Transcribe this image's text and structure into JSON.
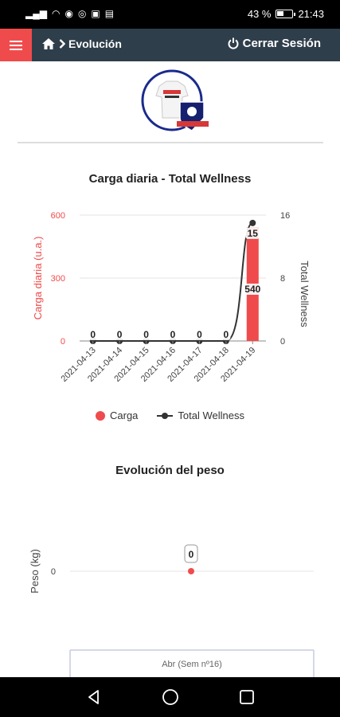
{
  "status": {
    "battery": "43 %",
    "time": "21:43"
  },
  "nav": {
    "breadcrumb": "Evolución",
    "logout": "Cerrar Sesión"
  },
  "chart1_title": "Carga diaria - Total Wellness",
  "chart2_title": "Evolución del peso",
  "legend": {
    "carga": "Carga",
    "wellness": "Total Wellness"
  },
  "chart_data": [
    {
      "type": "bar",
      "title": "Carga diaria - Total Wellness",
      "categories": [
        "2021-04-13",
        "2021-04-14",
        "2021-04-15",
        "2021-04-16",
        "2021-04-17",
        "2021-04-18",
        "2021-04-19"
      ],
      "ylabel": "Carga diaria (u.a.)",
      "y2label": "Total Wellness",
      "ylim": [
        0,
        600
      ],
      "y2lim": [
        0,
        16
      ],
      "yticks": [
        0,
        300,
        600
      ],
      "y2ticks": [
        0,
        8,
        16
      ],
      "series": [
        {
          "name": "Carga",
          "type": "bar",
          "axis": "left",
          "color": "#f04b4c",
          "values": [
            0,
            0,
            0,
            0,
            0,
            0,
            540
          ]
        },
        {
          "name": "Total Wellness",
          "type": "line",
          "axis": "right",
          "color": "#333333",
          "values": [
            0,
            0,
            0,
            0,
            0,
            0,
            15
          ]
        }
      ],
      "legend": "bottom"
    },
    {
      "type": "scatter",
      "title": "Evolución del peso",
      "ylabel": "Peso (kg)",
      "yticks": [
        0
      ],
      "categories": [
        "Abr (Sem nº16)"
      ],
      "values": [
        0
      ],
      "color": "#f04b4c"
    }
  ]
}
